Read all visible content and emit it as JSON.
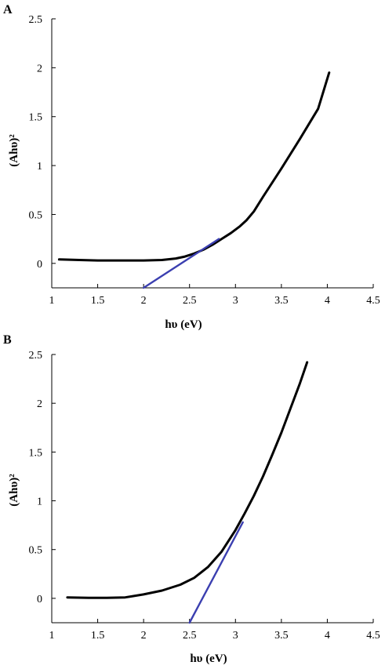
{
  "chart_data": [
    {
      "type": "line",
      "panel": "A",
      "xlabel": "hυ (eV)",
      "ylabel": "(Ahυ)²",
      "xlim": [
        1,
        4.5
      ],
      "ylim": [
        -0.25,
        2.5
      ],
      "xticks": [
        "1",
        "1.5",
        "2",
        "2.5",
        "3",
        "3.5",
        "4",
        "4.5"
      ],
      "yticks": [
        "0",
        "0.5",
        "1",
        "1.5",
        "2",
        "2.5"
      ],
      "series": [
        {
          "x": [
            1.08,
            1.3,
            1.5,
            1.7,
            1.9,
            2.0,
            2.2,
            2.35,
            2.45,
            2.55,
            2.65,
            2.75,
            2.85,
            2.95,
            3.05,
            3.12,
            3.2,
            3.3,
            3.5,
            3.7,
            3.9,
            4.02
          ],
          "y": [
            0.04,
            0.035,
            0.03,
            0.03,
            0.03,
            0.03,
            0.035,
            0.05,
            0.07,
            0.1,
            0.14,
            0.19,
            0.25,
            0.31,
            0.38,
            0.44,
            0.53,
            0.68,
            0.97,
            1.27,
            1.58,
            1.95
          ]
        },
        {
          "name": "tangent",
          "x": [
            2.0,
            2.82
          ],
          "y": [
            -0.25,
            0.25
          ]
        }
      ]
    },
    {
      "type": "line",
      "panel": "B",
      "xlabel": "hυ (eV)",
      "ylabel": "(Ahυ)²",
      "xlim": [
        1,
        4.5
      ],
      "ylim": [
        -0.25,
        2.5
      ],
      "xticks": [
        "1",
        "1.5",
        "2",
        "2.5",
        "3",
        "3.5",
        "4",
        "4.5"
      ],
      "yticks": [
        "0",
        "0.5",
        "1",
        "1.5",
        "2",
        "2.5"
      ],
      "series": [
        {
          "x": [
            1.17,
            1.4,
            1.6,
            1.8,
            2.0,
            2.2,
            2.4,
            2.55,
            2.7,
            2.85,
            3.0,
            3.1,
            3.2,
            3.3,
            3.4,
            3.5,
            3.6,
            3.7,
            3.78
          ],
          "y": [
            0.01,
            0.005,
            0.005,
            0.01,
            0.04,
            0.08,
            0.14,
            0.21,
            0.32,
            0.48,
            0.7,
            0.87,
            1.05,
            1.25,
            1.47,
            1.7,
            1.95,
            2.2,
            2.42
          ]
        },
        {
          "name": "tangent",
          "x": [
            2.5,
            3.08
          ],
          "y": [
            -0.25,
            0.78
          ]
        }
      ]
    }
  ]
}
